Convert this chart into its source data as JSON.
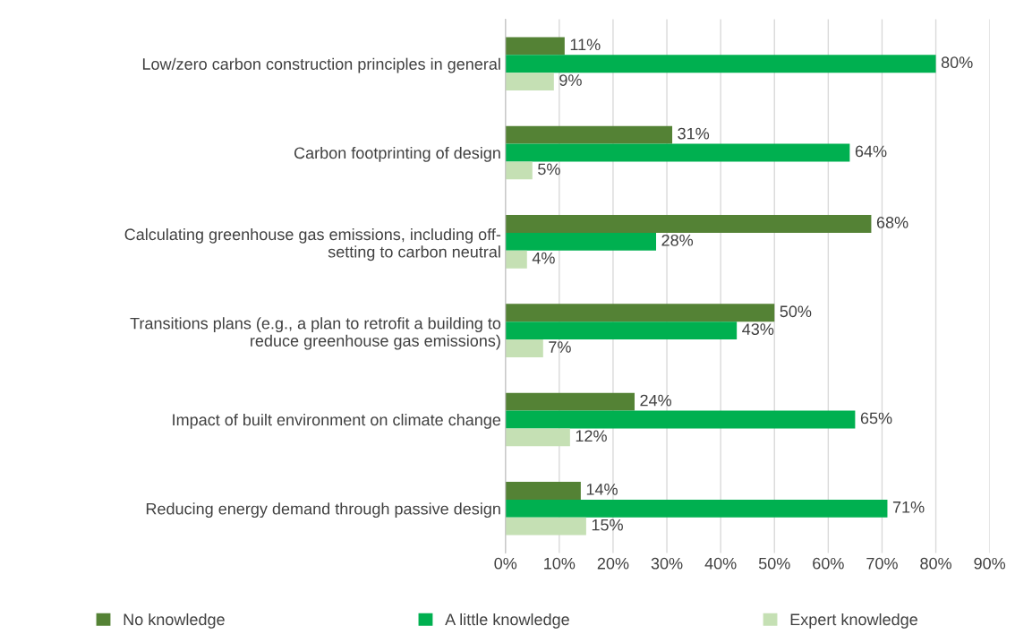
{
  "chart_data": {
    "type": "bar",
    "orientation": "horizontal",
    "categories": [
      "Low/zero carbon construction principles in general",
      "Carbon footprinting of design",
      "Calculating greenhouse gas emissions, including off-\nsetting to carbon neutral",
      "Transitions plans (e.g., a plan to retrofit a building to\nreduce greenhouse gas emissions)",
      "Impact of built environment on climate change",
      "Reducing energy demand through passive design"
    ],
    "series": [
      {
        "name": "No knowledge",
        "color": "#548235",
        "values": [
          11,
          31,
          68,
          50,
          24,
          14
        ],
        "value_labels": [
          "11%",
          "31%",
          "68%",
          "50%",
          "24%",
          "14%"
        ]
      },
      {
        "name": "A little knowledge",
        "color": "#00b050",
        "values": [
          80,
          64,
          28,
          43,
          65,
          71
        ],
        "value_labels": [
          "80%",
          "64%",
          "28%",
          "43%",
          "65%",
          "71%"
        ]
      },
      {
        "name": "Expert knowledge",
        "color": "#c5e0b4",
        "values": [
          9,
          5,
          4,
          7,
          12,
          15
        ],
        "value_labels": [
          "9%",
          "5%",
          "4%",
          "7%",
          "12%",
          "15%"
        ]
      }
    ],
    "xlim": [
      0,
      90
    ],
    "xticks": [
      {
        "value": 0,
        "label": "0%"
      },
      {
        "value": 10,
        "label": "10%"
      },
      {
        "value": 20,
        "label": "20%"
      },
      {
        "value": 30,
        "label": "30%"
      },
      {
        "value": 40,
        "label": "40%"
      },
      {
        "value": 50,
        "label": "50%"
      },
      {
        "value": 60,
        "label": "60%"
      },
      {
        "value": 70,
        "label": "70%"
      },
      {
        "value": 80,
        "label": "80%"
      },
      {
        "value": 90,
        "label": "90%"
      }
    ],
    "grid": "x",
    "legend": "bottom"
  }
}
